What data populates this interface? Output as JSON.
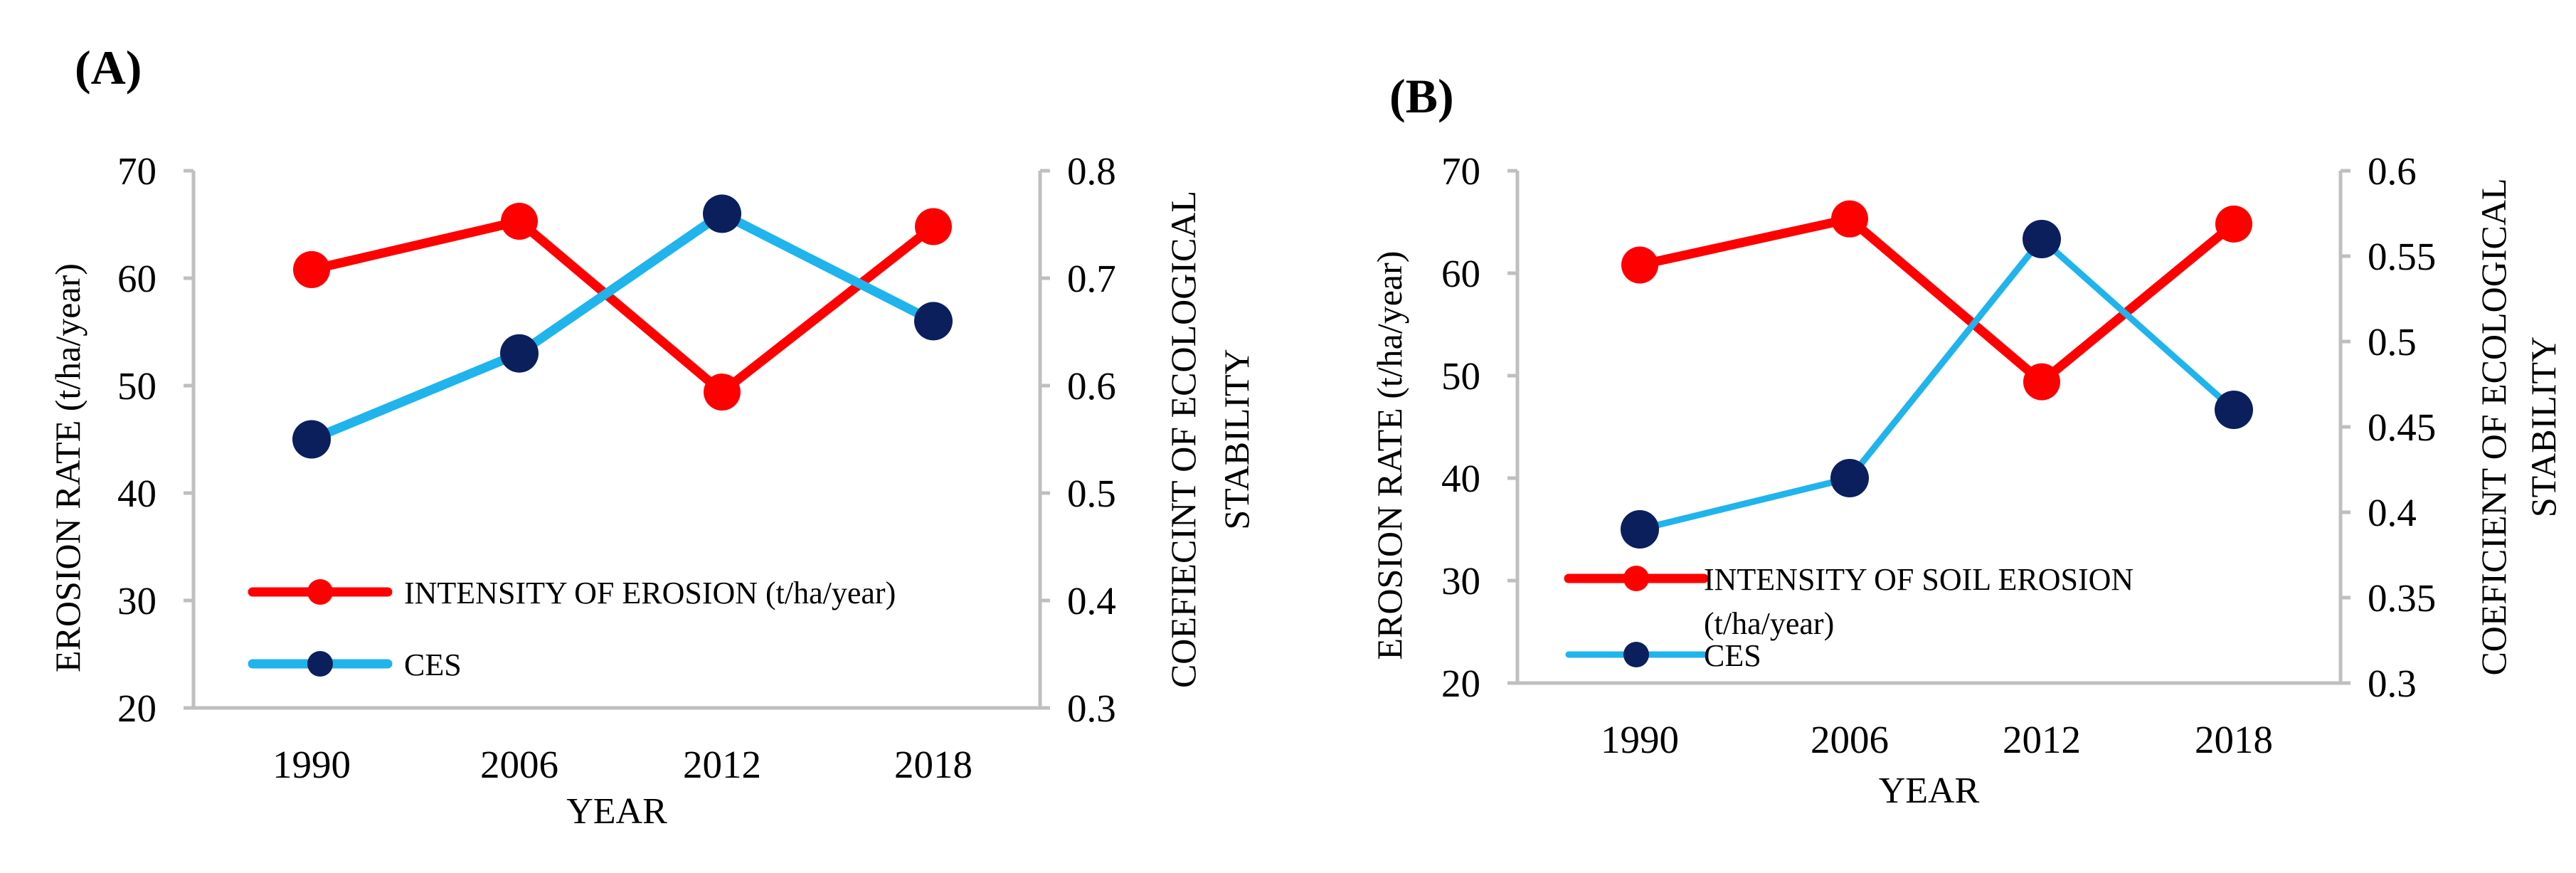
{
  "chart_data": [
    {
      "panel_label": "(A)",
      "type": "line",
      "categories": [
        "1990",
        "2006",
        "2012",
        "2018"
      ],
      "xlabel": "YEAR",
      "ylabel_left": "EROSION RATE (t/ha/year)",
      "ylabel_right": [
        "COEFIECINT OF ECOLOGICAL",
        "STABILITY"
      ],
      "ylim_left": [
        20,
        70
      ],
      "yticks_left": [
        "20",
        "30",
        "40",
        "50",
        "60",
        "70"
      ],
      "ylim_right": [
        0.3,
        0.8
      ],
      "yticks_right": [
        "0.3",
        "0.4",
        "0.5",
        "0.6",
        "0.7",
        "0.8"
      ],
      "grid": false,
      "legend_position": "lower-left",
      "series": [
        {
          "name": "INTENSITY OF EROSION (t/ha/year)",
          "legend_lines": [
            "INTENSITY OF EROSION (t/ha/year)"
          ],
          "axis": "left",
          "color": "#ff0000",
          "marker_color": "#ff0000",
          "values": [
            60.8,
            65.3,
            49.4,
            64.8
          ]
        },
        {
          "name": "CES",
          "legend_lines": [
            "CES"
          ],
          "axis": "right",
          "color": "#1fb4ec",
          "marker_color": "#0b1f5c",
          "values": [
            0.55,
            0.63,
            0.76,
            0.66
          ]
        }
      ]
    },
    {
      "panel_label": "(B)",
      "type": "line",
      "categories": [
        "1990",
        "2006",
        "2012",
        "2018"
      ],
      "xlabel": "YEAR",
      "ylabel_left": "EROSION RATE (t/ha/year)",
      "ylabel_right": [
        "COEFICIENT OF ECOLOGICAL",
        "STABILITY"
      ],
      "ylim_left": [
        20,
        70
      ],
      "yticks_left": [
        "20",
        "30",
        "40",
        "50",
        "60",
        "70"
      ],
      "ylim_right": [
        0.3,
        0.6
      ],
      "yticks_right": [
        "0.3",
        "0.35",
        "0.4",
        "0.45",
        "0.5",
        "0.55",
        "0.6"
      ],
      "grid": false,
      "legend_position": "lower-left",
      "series": [
        {
          "name": "INTENSITY OF SOIL EROSION (t/ha/year)",
          "legend_lines": [
            "INTENSITY OF SOIL EROSION",
            "(t/ha/year)"
          ],
          "axis": "left",
          "color": "#ff0000",
          "marker_color": "#ff0000",
          "values": [
            60.8,
            65.3,
            49.4,
            64.8
          ]
        },
        {
          "name": "CES",
          "legend_lines": [
            "CES"
          ],
          "axis": "right",
          "color": "#1fb4ec",
          "marker_color": "#0b1f5c",
          "values": [
            0.39,
            0.42,
            0.56,
            0.46
          ]
        }
      ]
    }
  ]
}
